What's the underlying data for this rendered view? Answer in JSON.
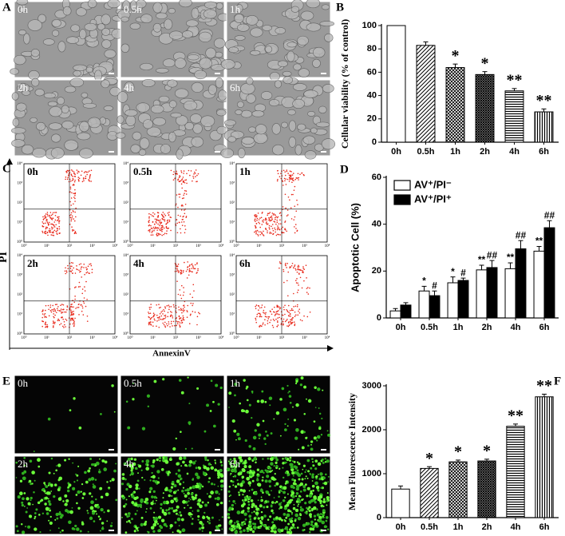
{
  "panels": {
    "A": {
      "panel_label": "A",
      "labels": [
        "0h",
        "0.5h",
        "1h",
        "2h",
        "4h",
        "6h"
      ]
    },
    "C": {
      "panel_label": "C",
      "labels": [
        "0h",
        "0.5h",
        "1h",
        "2h",
        "4h",
        "6h"
      ],
      "x_label": "AnnexinV",
      "y_label": "PI",
      "decades": [
        "10⁰",
        "10¹",
        "10²",
        "10³",
        "10⁴"
      ]
    },
    "E": {
      "panel_label": "E",
      "labels": [
        "0h",
        "0.5h",
        "1h",
        "2h",
        "4h",
        "6h"
      ]
    }
  },
  "chart_data": [
    {
      "type": "bar",
      "panel_label": "B",
      "ylabel": "Cellular viability (% of control)",
      "categories": [
        "0h",
        "0.5h",
        "1h",
        "2h",
        "4h",
        "6h"
      ],
      "values": [
        100,
        83,
        64,
        58,
        44,
        26
      ],
      "errors": [
        0,
        3,
        3,
        2.5,
        2,
        2.5
      ],
      "annotations": [
        null,
        null,
        "*",
        "*",
        "**",
        "**"
      ],
      "color": "#ffffff",
      "patterns": [
        "none",
        "diagonal",
        "cross",
        "dense",
        "horizontal",
        "vertical"
      ],
      "ylim": [
        0,
        100
      ],
      "yticks": [
        0,
        20,
        40,
        60,
        80,
        100
      ]
    },
    {
      "type": "bar",
      "panel_label": "D",
      "ylabel": "Apoptotic Cell (%)",
      "categories": [
        "0h",
        "0.5h",
        "1h",
        "2h",
        "4h",
        "6h"
      ],
      "series": [
        {
          "name": "AV⁺/PI⁻",
          "color": "#ffffff",
          "values": [
            3,
            11.5,
            15,
            20.5,
            21,
            28.5
          ],
          "errors": [
            1,
            2,
            2.5,
            2,
            2.5,
            2
          ],
          "annotations": [
            null,
            "*",
            "*",
            "**",
            "**",
            "**"
          ]
        },
        {
          "name": "AV⁺/PI⁺",
          "color": "#000000",
          "values": [
            5.5,
            9.5,
            16,
            21.5,
            29.5,
            38.5
          ],
          "errors": [
            1,
            2,
            1,
            3,
            3.5,
            3
          ],
          "annotations": [
            null,
            "#",
            "#",
            "##",
            "##",
            "##"
          ]
        }
      ],
      "legend": "upper-left",
      "ylim": [
        0,
        60
      ],
      "yticks": [
        0,
        20,
        40,
        60
      ]
    },
    {
      "type": "bar",
      "panel_label": "F",
      "ylabel": "Mean Fluorescence Intensity",
      "categories": [
        "0h",
        "0.5h",
        "1h",
        "2h",
        "4h",
        "6h"
      ],
      "values": [
        650,
        1120,
        1270,
        1290,
        2080,
        2750
      ],
      "errors": [
        70,
        40,
        40,
        40,
        50,
        60
      ],
      "annotations": [
        null,
        "*",
        "*",
        "*",
        "**",
        "**"
      ],
      "color": "#ffffff",
      "patterns": [
        "none",
        "diagonal",
        "cross",
        "dense",
        "horizontal",
        "vertical"
      ],
      "ylim": [
        0,
        3000
      ],
      "yticks": [
        0,
        1000,
        2000,
        3000
      ]
    }
  ]
}
